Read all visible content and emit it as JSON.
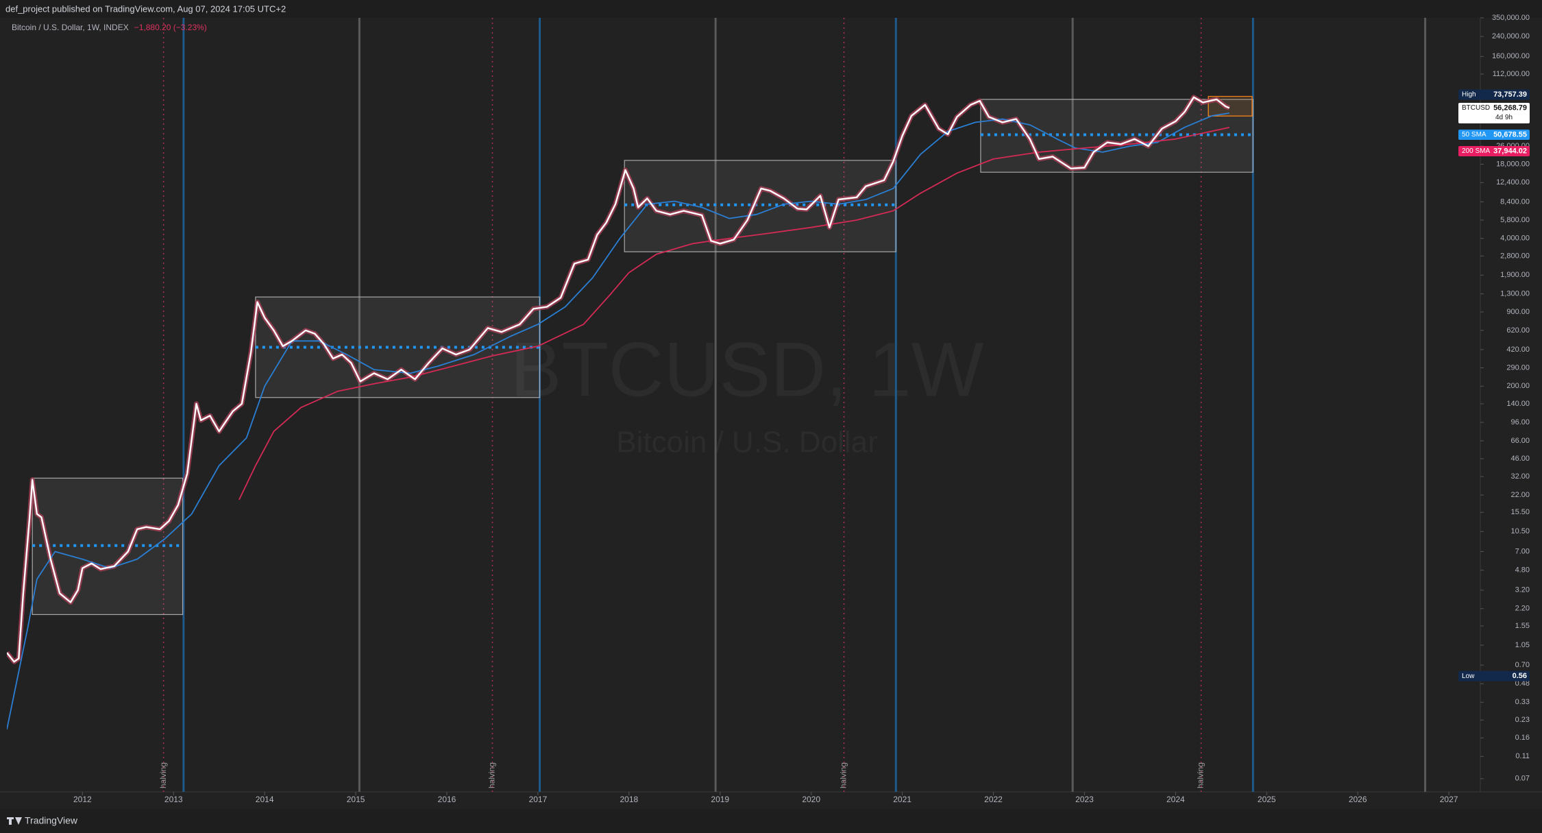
{
  "header": {
    "publisher": "def_project published on TradingView.com, Aug 07, 2024 17:05 UTC+2"
  },
  "footer": {
    "brand": "TradingView"
  },
  "chart_data": {
    "type": "line",
    "title": "Bitcoin / U.S. Dollar, 1W, INDEX",
    "change": "−1,880.20 (−3.23%)",
    "watermark": [
      "BTCUSD, 1W",
      "Bitcoin / U.S. Dollar"
    ],
    "log_scale": true,
    "grid": false,
    "xlim": [
      2011.17,
      2027.27
    ],
    "xticks": [
      2012,
      2013,
      2014,
      2015,
      2016,
      2017,
      2018,
      2019,
      2020,
      2021,
      2022,
      2023,
      2024,
      2025,
      2026,
      2027
    ],
    "ylim": [
      0.0536,
      350000
    ],
    "yticks": [
      {
        "value": 350000,
        "label": "350,000.00"
      },
      {
        "value": 240000,
        "label": "240,000.00"
      },
      {
        "value": 160000,
        "label": "160,000.00"
      },
      {
        "value": 112000,
        "label": "112,000.00"
      },
      {
        "value": 26000,
        "label": "26,000.00"
      },
      {
        "value": 18000,
        "label": "18,000.00"
      },
      {
        "value": 12400,
        "label": "12,400.00"
      },
      {
        "value": 8400,
        "label": "8,400.00"
      },
      {
        "value": 5800,
        "label": "5,800.00"
      },
      {
        "value": 4000,
        "label": "4,000.00"
      },
      {
        "value": 2800,
        "label": "2,800.00"
      },
      {
        "value": 1900,
        "label": "1,900.00"
      },
      {
        "value": 1300,
        "label": "1,300.00"
      },
      {
        "value": 900,
        "label": "900.00"
      },
      {
        "value": 620,
        "label": "620.00"
      },
      {
        "value": 420,
        "label": "420.00"
      },
      {
        "value": 290,
        "label": "290.00"
      },
      {
        "value": 200,
        "label": "200.00"
      },
      {
        "value": 140,
        "label": "140.00"
      },
      {
        "value": 96,
        "label": "96.00"
      },
      {
        "value": 66,
        "label": "66.00"
      },
      {
        "value": 46,
        "label": "46.00"
      },
      {
        "value": 32,
        "label": "32.00"
      },
      {
        "value": 22,
        "label": "22.00"
      },
      {
        "value": 15.5,
        "label": "15.50"
      },
      {
        "value": 10.5,
        "label": "10.50"
      },
      {
        "value": 7,
        "label": "7.00"
      },
      {
        "value": 4.8,
        "label": "4.80"
      },
      {
        "value": 3.2,
        "label": "3.20"
      },
      {
        "value": 2.2,
        "label": "2.20"
      },
      {
        "value": 1.55,
        "label": "1.55"
      },
      {
        "value": 1.05,
        "label": "1.05"
      },
      {
        "value": 0.7,
        "label": "0.70"
      },
      {
        "value": 0.48,
        "label": "0.48"
      },
      {
        "value": 0.33,
        "label": "0.33"
      },
      {
        "value": 0.23,
        "label": "0.23"
      },
      {
        "value": 0.16,
        "label": "0.16"
      },
      {
        "value": 0.11,
        "label": "0.11"
      },
      {
        "value": 0.07,
        "label": "0.07"
      }
    ],
    "series": [
      {
        "name": "BTCUSD",
        "color": "#ffffff",
        "shade": "#b0405a",
        "x": [
          2011.17,
          2011.25,
          2011.3,
          2011.35,
          2011.42,
          2011.45,
          2011.5,
          2011.55,
          2011.65,
          2011.75,
          2011.87,
          2011.95,
          2012.0,
          2012.1,
          2012.2,
          2012.35,
          2012.5,
          2012.6,
          2012.7,
          2012.85,
          2012.95,
          2013.05,
          2013.15,
          2013.25,
          2013.3,
          2013.4,
          2013.5,
          2013.65,
          2013.75,
          2013.85,
          2013.92,
          2014.0,
          2014.1,
          2014.2,
          2014.3,
          2014.45,
          2014.55,
          2014.65,
          2014.75,
          2014.85,
          2014.95,
          2015.05,
          2015.2,
          2015.35,
          2015.5,
          2015.65,
          2015.8,
          2015.95,
          2016.1,
          2016.25,
          2016.45,
          2016.6,
          2016.8,
          2016.95,
          2017.1,
          2017.25,
          2017.4,
          2017.55,
          2017.65,
          2017.75,
          2017.85,
          2017.96,
          2018.05,
          2018.1,
          2018.2,
          2018.3,
          2018.45,
          2018.6,
          2018.8,
          2018.9,
          2019.0,
          2019.15,
          2019.3,
          2019.45,
          2019.55,
          2019.7,
          2019.85,
          2019.95,
          2020.1,
          2020.2,
          2020.3,
          2020.5,
          2020.6,
          2020.8,
          2020.9,
          2021.0,
          2021.1,
          2021.25,
          2021.4,
          2021.5,
          2021.6,
          2021.75,
          2021.85,
          2021.95,
          2022.1,
          2022.25,
          2022.4,
          2022.5,
          2022.65,
          2022.85,
          2023.0,
          2023.1,
          2023.25,
          2023.4,
          2023.55,
          2023.7,
          2023.85,
          2024.0,
          2024.1,
          2024.2,
          2024.3,
          2024.45,
          2024.55,
          2024.59
        ],
        "values": [
          0.9,
          0.75,
          0.8,
          3,
          14,
          30,
          15,
          14,
          6,
          3,
          2.5,
          3.2,
          5,
          5.5,
          4.9,
          5.2,
          7,
          11,
          11.5,
          11,
          13,
          18,
          34,
          140,
          100,
          110,
          80,
          120,
          140,
          400,
          1100,
          800,
          620,
          450,
          500,
          620,
          580,
          470,
          350,
          380,
          320,
          220,
          260,
          230,
          280,
          230,
          320,
          430,
          380,
          420,
          650,
          600,
          700,
          960,
          1000,
          1200,
          2400,
          2600,
          4300,
          5500,
          8000,
          16000,
          11000,
          7500,
          9000,
          7000,
          6500,
          7000,
          6400,
          3800,
          3600,
          3900,
          5800,
          11000,
          10500,
          9000,
          7300,
          7200,
          9500,
          5000,
          8800,
          9200,
          11500,
          13000,
          19000,
          32000,
          48000,
          60000,
          37000,
          33000,
          47000,
          60000,
          65000,
          47000,
          42000,
          45000,
          30000,
          20000,
          21000,
          16500,
          16800,
          23000,
          28000,
          27000,
          30000,
          26000,
          37000,
          43000,
          52000,
          70000,
          63000,
          67000,
          58000,
          56268.79
        ],
        "last": {
          "value": 56268.79,
          "label": "56,268.79"
        },
        "countdown": "4d 9h"
      },
      {
        "name": "50 SMA",
        "color": "#2a7fd4",
        "x": [
          2011.17,
          2011.4,
          2011.5,
          2011.7,
          2012.0,
          2012.3,
          2012.6,
          2012.9,
          2013.2,
          2013.5,
          2013.8,
          2014.0,
          2014.3,
          2014.6,
          2014.9,
          2015.2,
          2015.6,
          2015.9,
          2016.3,
          2016.7,
          2017.0,
          2017.3,
          2017.6,
          2017.9,
          2018.2,
          2018.5,
          2018.8,
          2019.1,
          2019.4,
          2019.7,
          2020.0,
          2020.3,
          2020.6,
          2020.9,
          2021.2,
          2021.5,
          2021.8,
          2022.1,
          2022.4,
          2022.7,
          2022.9,
          2023.2,
          2023.5,
          2023.8,
          2024.1,
          2024.4,
          2024.59
        ],
        "values": [
          0.19,
          1.5,
          4,
          7,
          6,
          5,
          6,
          9,
          15,
          40,
          70,
          200,
          500,
          500,
          380,
          280,
          260,
          300,
          380,
          550,
          700,
          1000,
          1800,
          4000,
          8000,
          8500,
          7500,
          6000,
          6500,
          8000,
          8500,
          8000,
          8800,
          11000,
          22000,
          35000,
          42000,
          45000,
          40000,
          30000,
          25000,
          23000,
          26000,
          28000,
          38000,
          48000,
          50678.55
        ],
        "last": {
          "value": 50678.55,
          "label": "50,678.55"
        }
      },
      {
        "name": "200 SMA",
        "color": "#d42a55",
        "x": [
          2013.72,
          2013.9,
          2014.1,
          2014.4,
          2014.8,
          2015.2,
          2015.6,
          2016.0,
          2016.5,
          2017.0,
          2017.5,
          2017.8,
          2018.0,
          2018.3,
          2018.7,
          2019.0,
          2019.5,
          2020.0,
          2020.5,
          2020.9,
          2021.2,
          2021.6,
          2022.0,
          2022.5,
          2023.0,
          2023.5,
          2024.0,
          2024.59
        ],
        "values": [
          20,
          40,
          80,
          130,
          180,
          210,
          240,
          290,
          370,
          450,
          700,
          1300,
          2000,
          2900,
          3600,
          3900,
          4400,
          5000,
          5800,
          7000,
          10000,
          15000,
          20000,
          23000,
          25000,
          27000,
          30000,
          37944.02
        ],
        "last": {
          "value": 37944.02,
          "label": "37,944.02"
        }
      }
    ],
    "high": {
      "name": "High",
      "value": 73757.39,
      "label": "73,757.39"
    },
    "low": {
      "name": "Low",
      "value": 0.56,
      "label": "0.56"
    },
    "boxes": [
      {
        "x": [
          2011.45,
          2013.1
        ],
        "y": [
          1.95,
          31
        ],
        "mid": 7.9
      },
      {
        "x": [
          2013.9,
          2017.02
        ],
        "y": [
          159,
          1220
        ],
        "mid": 440
      },
      {
        "x": [
          2017.95,
          2020.93
        ],
        "y": [
          3050,
          19450
        ],
        "mid": 7900
      },
      {
        "x": [
          2021.86,
          2024.85
        ],
        "y": [
          15300,
          67000
        ],
        "mid": 32700
      }
    ],
    "focus_box": {
      "x": [
        2024.36,
        2024.84
      ],
      "y": [
        47800,
        71100
      ],
      "color": "#e07b20"
    },
    "vertical_lines": [
      {
        "x": 2015.04,
        "color": "#5a5a5a"
      },
      {
        "x": 2018.95,
        "color": "#5a5a5a"
      },
      {
        "x": 2022.87,
        "color": "#5a5a5a"
      },
      {
        "x": 2026.74,
        "color": "#5a5a5a"
      },
      {
        "x": 2013.11,
        "color": "#1f5a8c"
      },
      {
        "x": 2017.02,
        "color": "#1f5a8c"
      },
      {
        "x": 2020.93,
        "color": "#1f5a8c"
      },
      {
        "x": 2024.85,
        "color": "#1f5a8c"
      }
    ],
    "halvings": {
      "label": "halving",
      "color": "#b2304f",
      "x": [
        2012.89,
        2016.5,
        2020.36,
        2024.28
      ]
    }
  }
}
